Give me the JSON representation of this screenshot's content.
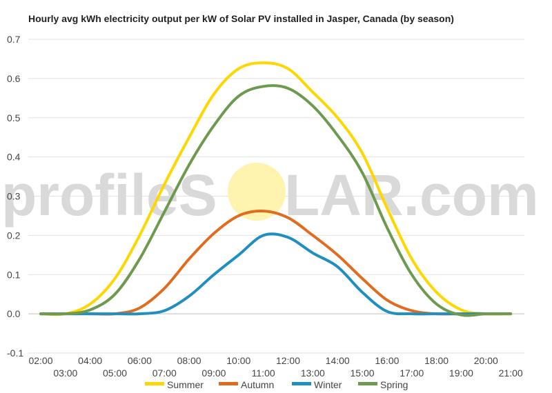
{
  "chart_data": {
    "type": "line",
    "title": "Hourly avg kWh electricity output per kW of Solar PV installed in Jasper, Canada (by season)",
    "xlabel": "",
    "ylabel": "",
    "ylim": [
      -0.1,
      0.7
    ],
    "yticks": [
      "-0.1",
      "0.0",
      "0.1",
      "0.2",
      "0.3",
      "0.4",
      "0.5",
      "0.6",
      "0.7"
    ],
    "x": [
      "02:00",
      "03:00",
      "04:00",
      "05:00",
      "06:00",
      "07:00",
      "08:00",
      "09:00",
      "10:00",
      "11:00",
      "12:00",
      "13:00",
      "14:00",
      "15:00",
      "16:00",
      "17:00",
      "18:00",
      "19:00",
      "20:00",
      "21:00"
    ],
    "grid": true,
    "legend_position": "bottom",
    "series": [
      {
        "name": "Summer",
        "color": "#ffd700",
        "values": [
          0.0,
          0.0,
          0.025,
          0.09,
          0.2,
          0.33,
          0.45,
          0.56,
          0.625,
          0.64,
          0.625,
          0.565,
          0.5,
          0.41,
          0.27,
          0.14,
          0.055,
          0.01,
          0.0,
          0.0
        ]
      },
      {
        "name": "Autumn",
        "color": "#e06d1f",
        "values": [
          0.0,
          0.0,
          0.0,
          0.0,
          0.015,
          0.065,
          0.14,
          0.205,
          0.25,
          0.262,
          0.245,
          0.2,
          0.15,
          0.09,
          0.035,
          0.008,
          0.0,
          0.0,
          0.0,
          0.0
        ]
      },
      {
        "name": "Winter",
        "color": "#1f8fc0",
        "values": [
          0.0,
          0.0,
          0.0,
          0.0,
          0.0,
          0.008,
          0.045,
          0.1,
          0.15,
          0.2,
          0.195,
          0.155,
          0.12,
          0.055,
          0.006,
          0.0,
          0.0,
          0.0,
          0.0,
          0.0
        ]
      },
      {
        "name": "Spring",
        "color": "#6e9a50",
        "values": [
          0.0,
          0.0,
          0.01,
          0.05,
          0.14,
          0.26,
          0.38,
          0.48,
          0.555,
          0.58,
          0.575,
          0.53,
          0.455,
          0.36,
          0.22,
          0.1,
          0.025,
          -0.003,
          0.0,
          0.0
        ]
      }
    ]
  },
  "watermark": {
    "text_before": "profileS",
    "text_after": "LAR.com",
    "sun_color": "#fff3b0"
  }
}
